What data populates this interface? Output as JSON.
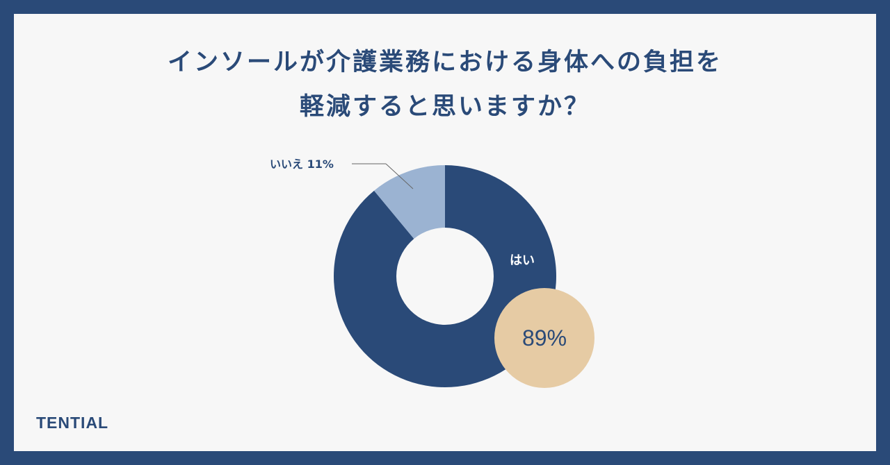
{
  "title": {
    "line1": "インソールが介護業務における身体への負担を",
    "line2": "軽減すると思いますか？"
  },
  "logo": "TENTIAL",
  "colors": {
    "frame": "#2a4a78",
    "background": "#f7f7f7",
    "yes": "#2a4a78",
    "no": "#9bb3d2",
    "badge": "#e6cba4"
  },
  "chart_data": {
    "type": "pie",
    "donut": true,
    "categories": [
      "はい",
      "いいえ"
    ],
    "values": [
      89,
      11
    ],
    "unit": "%",
    "labels": {
      "yes_name": "はい",
      "yes_value": "89%",
      "no_label": "いいえ 11%"
    }
  }
}
